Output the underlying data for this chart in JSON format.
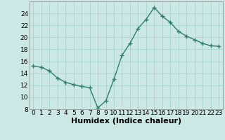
{
  "x": [
    0,
    1,
    2,
    3,
    4,
    5,
    6,
    7,
    8,
    9,
    10,
    11,
    12,
    13,
    14,
    15,
    16,
    17,
    18,
    19,
    20,
    21,
    22,
    23
  ],
  "y": [
    15.2,
    15.0,
    14.4,
    13.2,
    12.5,
    12.1,
    11.8,
    11.6,
    8.2,
    9.4,
    13.0,
    17.0,
    19.0,
    21.5,
    23.0,
    25.0,
    23.5,
    22.5,
    21.0,
    20.2,
    19.6,
    19.0,
    18.6,
    18.5
  ],
  "line_color": "#2e7d6e",
  "marker": "+",
  "bg_color": "#cce8e4",
  "grid_color": "#a8d4ce",
  "xlabel": "Humidex (Indice chaleur)",
  "ylim": [
    8,
    26
  ],
  "xlim": [
    -0.5,
    23.5
  ],
  "yticks": [
    8,
    10,
    12,
    14,
    16,
    18,
    20,
    22,
    24
  ],
  "xticks": [
    0,
    1,
    2,
    3,
    4,
    5,
    6,
    7,
    8,
    9,
    10,
    11,
    12,
    13,
    14,
    15,
    16,
    17,
    18,
    19,
    20,
    21,
    22,
    23
  ],
  "tick_label_fontsize": 6.5,
  "xlabel_fontsize": 8,
  "line_width": 1.0,
  "marker_size": 4,
  "marker_edge_width": 1.0
}
